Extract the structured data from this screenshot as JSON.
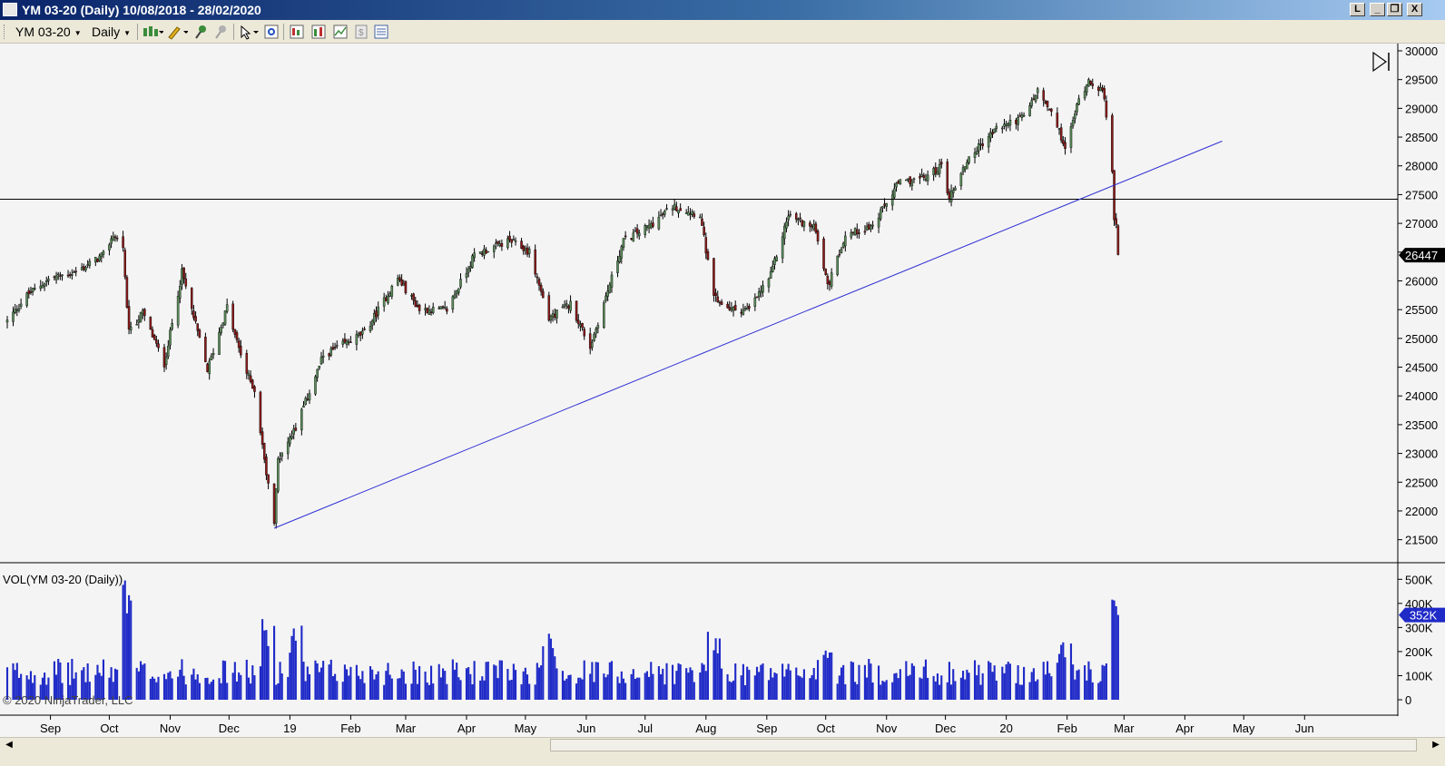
{
  "window": {
    "title": "YM 03-20 (Daily)  10/08/2018 - 28/02/2020",
    "buttons": [
      "L",
      "_",
      "❐",
      "X"
    ]
  },
  "toolbar": {
    "instrument": "YM 03-20",
    "interval": "Daily",
    "icons": [
      "bar-type-icon",
      "pencil-draw-icon",
      "pin-icon",
      "ruler-icon",
      "pointer-icon",
      "zoom-icon",
      "chart-style-icon",
      "indicators-icon",
      "strategies-icon",
      "properties-icon",
      "data-box-icon"
    ]
  },
  "indicator_label": "VOL(YM 03-20 (Daily))",
  "copyright": "© 2020 NinjaTrader, LLC",
  "price_badge": "26447",
  "volume_badge": "352K",
  "colors": {
    "up_candle": "#5b8c5a",
    "down_candle": "#8b1a1a",
    "volume": "#1f2ac7",
    "trendline": "#2f2fd6",
    "hline": "#000000",
    "badge_bg": "#000000",
    "vol_badge_bg": "#1f2ac7"
  },
  "chart_data": [
    {
      "type": "candlestick",
      "series": [
        {
          "name": "YM 03-20 (Daily)"
        }
      ],
      "xlim": [
        "2018-08-10",
        "2020-06-30"
      ],
      "ylim": [
        21100,
        30000
      ],
      "yticks": [
        "30000",
        "29500",
        "29000",
        "28500",
        "28000",
        "27500",
        "27000",
        "26500",
        "26000",
        "25500",
        "25000",
        "24500",
        "24000",
        "23500",
        "23000",
        "22500",
        "22000",
        "21500"
      ],
      "xticks": [
        "Sep",
        "Oct",
        "Nov",
        "Dec",
        "19",
        "Feb",
        "Mar",
        "Apr",
        "May",
        "Jun",
        "Jul",
        "Aug",
        "Sep",
        "Oct",
        "Nov",
        "Dec",
        "20",
        "Feb",
        "Mar",
        "Apr",
        "May",
        "Jun"
      ],
      "closes": [
        [
          "2018-08-10",
          25300
        ],
        [
          "2018-08-20",
          25750
        ],
        [
          "2018-09-01",
          26050
        ],
        [
          "2018-09-14",
          26150
        ],
        [
          "2018-09-28",
          26450
        ],
        [
          "2018-10-03",
          26800
        ],
        [
          "2018-10-08",
          26600
        ],
        [
          "2018-10-11",
          25100
        ],
        [
          "2018-10-18",
          25450
        ],
        [
          "2018-10-29",
          24550
        ],
        [
          "2018-11-07",
          26150
        ],
        [
          "2018-11-20",
          24450
        ],
        [
          "2018-11-30",
          25550
        ],
        [
          "2018-12-04",
          25050
        ],
        [
          "2018-12-10",
          24400
        ],
        [
          "2018-12-14",
          24100
        ],
        [
          "2018-12-21",
          22450
        ],
        [
          "2018-12-24",
          21800
        ],
        [
          "2018-12-26",
          22900
        ],
        [
          "2019-01-04",
          23450
        ],
        [
          "2019-01-18",
          24700
        ],
        [
          "2019-02-08",
          25100
        ],
        [
          "2019-02-25",
          26050
        ],
        [
          "2019-03-08",
          25500
        ],
        [
          "2019-03-22",
          25500
        ],
        [
          "2019-04-05",
          26450
        ],
        [
          "2019-04-23",
          26700
        ],
        [
          "2019-05-03",
          26500
        ],
        [
          "2019-05-13",
          25350
        ],
        [
          "2019-05-24",
          25600
        ],
        [
          "2019-06-03",
          24850
        ],
        [
          "2019-06-20",
          26700
        ],
        [
          "2019-07-03",
          26950
        ],
        [
          "2019-07-15",
          27300
        ],
        [
          "2019-07-29",
          27150
        ],
        [
          "2019-08-05",
          25700
        ],
        [
          "2019-08-14",
          25500
        ],
        [
          "2019-08-23",
          25500
        ],
        [
          "2019-09-03",
          26100
        ],
        [
          "2019-09-12",
          27150
        ],
        [
          "2019-09-26",
          26900
        ],
        [
          "2019-10-02",
          25900
        ],
        [
          "2019-10-11",
          26800
        ],
        [
          "2019-10-25",
          26950
        ],
        [
          "2019-11-07",
          27700
        ],
        [
          "2019-11-21",
          27800
        ],
        [
          "2019-11-29",
          28000
        ],
        [
          "2019-12-03",
          27450
        ],
        [
          "2019-12-13",
          28150
        ],
        [
          "2019-12-27",
          28650
        ],
        [
          "2020-01-10",
          28850
        ],
        [
          "2020-01-17",
          29300
        ],
        [
          "2020-01-24",
          28900
        ],
        [
          "2020-01-31",
          28350
        ],
        [
          "2020-02-07",
          29150
        ],
        [
          "2020-02-12",
          29500
        ],
        [
          "2020-02-19",
          29300
        ],
        [
          "2020-02-21",
          28900
        ],
        [
          "2020-02-24",
          27950
        ],
        [
          "2020-02-25",
          27050
        ],
        [
          "2020-02-26",
          26950
        ],
        [
          "2020-02-27",
          26447
        ]
      ],
      "annotations": {
        "horizontal_line": 27420,
        "trendline": [
          [
            "2018-12-24",
            21700
          ],
          [
            "2020-04-20",
            28430
          ]
        ],
        "last_price": 26447
      }
    },
    {
      "type": "bar",
      "series": [
        {
          "name": "VOL(YM 03-20 (Daily))"
        }
      ],
      "ylim": [
        0,
        520000
      ],
      "yticks": [
        "500K",
        "400K",
        "300K",
        "200K",
        "100K",
        "0"
      ],
      "values_sample": [
        [
          "2018-10-11",
          500000
        ],
        [
          "2018-12-21",
          370000
        ],
        [
          "2019-01-04",
          320000
        ],
        [
          "2019-05-13",
          300000
        ],
        [
          "2019-08-05",
          290000
        ],
        [
          "2019-10-02",
          270000
        ],
        [
          "2020-01-31",
          270000
        ],
        [
          "2020-02-25",
          360000
        ],
        [
          "2020-02-27",
          440000
        ],
        [
          "2020-02-28",
          352000
        ]
      ],
      "last_value": "352K"
    }
  ]
}
